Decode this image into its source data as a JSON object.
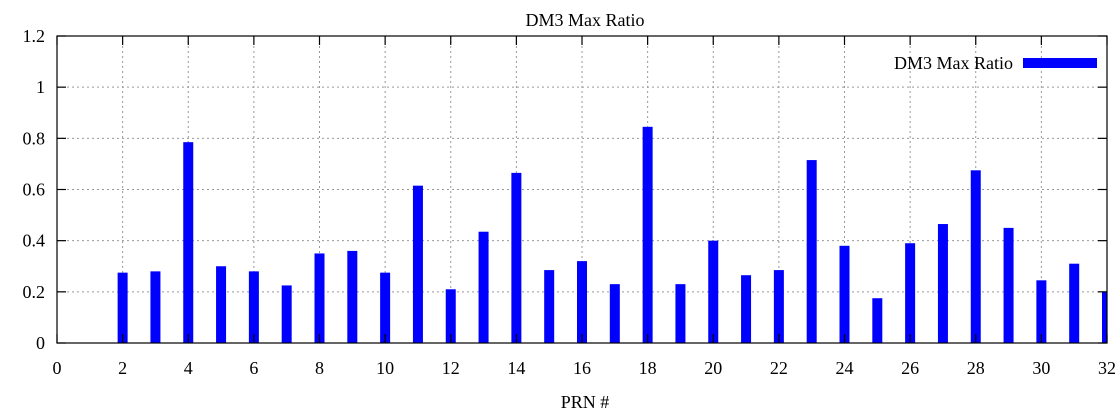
{
  "chart_data": {
    "type": "bar",
    "title": "DM3 Max Ratio",
    "xlabel": "PRN #",
    "ylabel": "",
    "xlim": [
      0,
      32
    ],
    "ylim": [
      0,
      1.2
    ],
    "x_ticks": [
      "0",
      "2",
      "4",
      "6",
      "8",
      "10",
      "12",
      "14",
      "16",
      "18",
      "20",
      "22",
      "24",
      "26",
      "28",
      "30",
      "32"
    ],
    "y_ticks": [
      "0",
      "0.2",
      "0.4",
      "0.6",
      "0.8",
      "1",
      "1.2"
    ],
    "grid": true,
    "legend_position": "top-right",
    "series": [
      {
        "name": "DM3 Max Ratio",
        "color": "#0000ff",
        "x": [
          2,
          3,
          4,
          5,
          6,
          7,
          8,
          9,
          10,
          11,
          12,
          13,
          14,
          15,
          16,
          17,
          18,
          19,
          20,
          21,
          22,
          23,
          24,
          25,
          26,
          27,
          28,
          29,
          30,
          31,
          32
        ],
        "values": [
          0.275,
          0.28,
          0.785,
          0.3,
          0.28,
          0.225,
          0.35,
          0.36,
          0.275,
          0.615,
          0.21,
          0.435,
          0.665,
          0.285,
          0.32,
          0.23,
          0.845,
          0.23,
          0.4,
          0.265,
          0.285,
          0.715,
          0.38,
          0.175,
          0.39,
          0.465,
          0.675,
          0.45,
          0.245,
          0.31,
          0.2
        ]
      }
    ]
  }
}
